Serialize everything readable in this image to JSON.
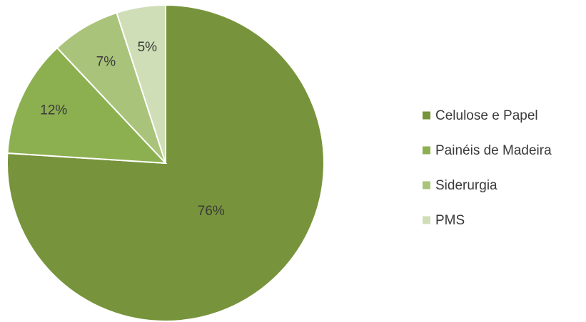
{
  "chart_data": {
    "type": "pie",
    "title": "",
    "categories": [
      "Celulose e Papel",
      "Painéis de Madeira",
      "Siderurgia",
      "PMS"
    ],
    "values": [
      76,
      12,
      7,
      5
    ],
    "labels": [
      "76%",
      "12%",
      "7%",
      "5%"
    ],
    "colors": [
      "#77933c",
      "#8cb050",
      "#a9c47a",
      "#cfdeb7"
    ],
    "start_angle_deg": 0,
    "direction": "clockwise",
    "legend_position": "right"
  }
}
